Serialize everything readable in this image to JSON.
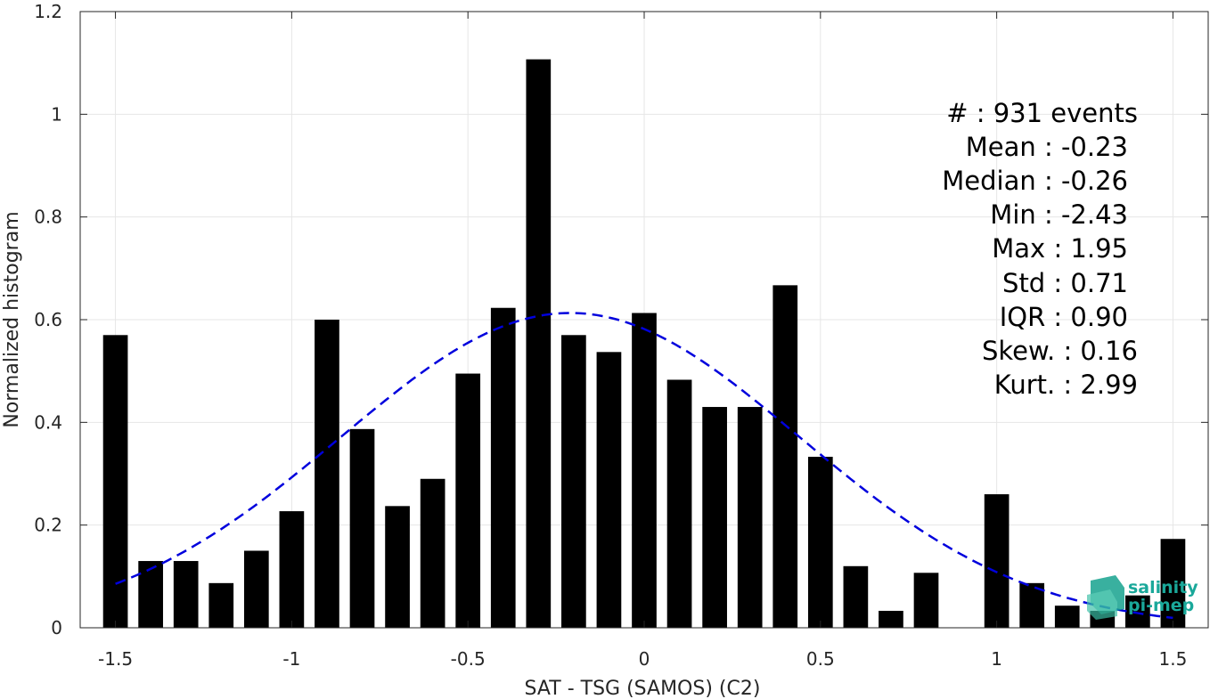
{
  "chart_data": {
    "type": "bar",
    "xlabel": "SAT - TSG (SAMOS) (C2)",
    "ylabel": "Normalized histogram",
    "xlim": [
      -1.6,
      1.6
    ],
    "ylim": [
      0,
      1.2
    ],
    "xticks": [
      "-1.5",
      "-1",
      "-0.5",
      "0",
      "0.5",
      "1",
      "1.5"
    ],
    "xtick_values": [
      -1.5,
      -1,
      -0.5,
      0,
      0.5,
      1,
      1.5
    ],
    "yticks": [
      "0",
      "0.2",
      "0.4",
      "0.6",
      "0.8",
      "1",
      "1.2"
    ],
    "ytick_values": [
      0,
      0.2,
      0.4,
      0.6,
      0.8,
      1,
      1.2
    ],
    "grid": true,
    "bar_width": 0.07,
    "bars": {
      "x": [
        -1.5,
        -1.4,
        -1.3,
        -1.2,
        -1.1,
        -1.0,
        -0.9,
        -0.8,
        -0.7,
        -0.6,
        -0.5,
        -0.4,
        -0.3,
        -0.2,
        -0.1,
        0.0,
        0.1,
        0.2,
        0.3,
        0.4,
        0.5,
        0.6,
        0.7,
        0.8,
        0.9,
        1.0,
        1.1,
        1.2,
        1.3,
        1.4,
        1.5
      ],
      "values": [
        0.57,
        0.13,
        0.13,
        0.087,
        0.15,
        0.227,
        0.6,
        0.387,
        0.237,
        0.29,
        0.495,
        0.623,
        1.107,
        0.57,
        0.537,
        0.613,
        0.483,
        0.43,
        0.43,
        0.667,
        0.333,
        0.12,
        0.033,
        0.107,
        0.0,
        0.26,
        0.087,
        0.043,
        0.033,
        0.063,
        0.173
      ]
    },
    "fit": {
      "style": "dashed",
      "color": "#0000dd",
      "mean": -0.21,
      "std": 0.65,
      "peak": 0.613,
      "x_range": [
        -1.5,
        1.5
      ]
    },
    "bar_color": "#000000"
  },
  "stats": [
    "#  : 931 events",
    "Mean : -0.23",
    "Median : -0.26",
    "Min : -2.43",
    "Max : 1.95",
    "Std : 0.71",
    "IQR : 0.90",
    "Skew. : 0.16",
    "Kurt. : 2.99"
  ],
  "logo": {
    "line1": "salinity",
    "line2": "pi-mep",
    "color": "#1aa89a"
  }
}
